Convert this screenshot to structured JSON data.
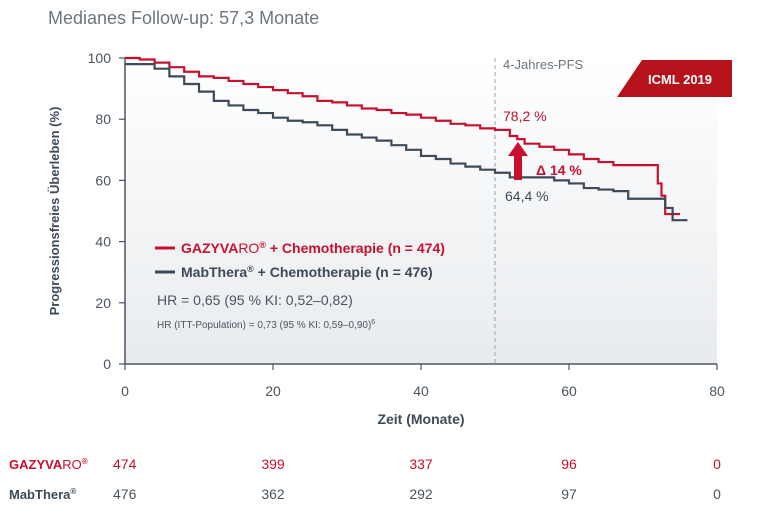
{
  "subtitle": "Medianes Follow-up: 57,3 Monate",
  "badge": "ICML 2019",
  "colors": {
    "gazyva": "#c8102e",
    "mabthera": "#3d4a57",
    "badge": "#b5121b",
    "axis": "#4a5560",
    "plot_bg_top": "#ffffff",
    "plot_bg_bottom": "#e8ebee"
  },
  "marker": {
    "label": "4-Jahres-PFS",
    "x": 50
  },
  "annotations": {
    "gazyva_value": "78,2 %",
    "mabthera_value": "64,4 %",
    "delta": "Δ 14 %"
  },
  "legend": {
    "gazyva_brand": "GAZYVA",
    "gazyva_brand_suffix": "RO",
    "gazyva_reg": "®",
    "gazyva_rest": " + Chemotherapie (n = 474)",
    "mabthera_brand": "MabThera",
    "mabthera_reg": "®",
    "mabthera_rest": " + Chemotherapie (n = 476)"
  },
  "hr_main": "HR = 0,65 (95 % KI: 0,52–0,82)",
  "hr_itt": "HR (ITT-Population) = 0,73 (95 % KI: 0,59–0,90)",
  "hr_itt_sup": "6",
  "risk_table": {
    "gazyva_label_brand": "GAZYVA",
    "gazyva_label_suffix": "RO",
    "gazyva_label_reg": "®",
    "mabthera_label": "MabThera",
    "mabthera_label_reg": "®",
    "timepoints": [
      0,
      20,
      40,
      60,
      80
    ],
    "gazyva": [
      "474",
      "399",
      "337",
      "96",
      "0"
    ],
    "mabthera": [
      "476",
      "362",
      "292",
      "97",
      "0"
    ]
  },
  "chart_data": {
    "type": "line",
    "xlabel": "Zeit (Monate)",
    "ylabel": "Progressionsfreies Überleben (%)",
    "xlim": [
      0,
      80
    ],
    "ylim": [
      0,
      100
    ],
    "xticks": [
      0,
      20,
      40,
      60,
      80
    ],
    "yticks": [
      0,
      20,
      40,
      60,
      80,
      100
    ],
    "series": [
      {
        "name": "GAZYVARO® + Chemotherapie (n = 474)",
        "x": [
          0,
          2,
          4,
          6,
          8,
          10,
          12,
          14,
          16,
          18,
          20,
          22,
          24,
          26,
          28,
          30,
          32,
          34,
          36,
          38,
          40,
          42,
          44,
          46,
          48,
          50,
          52,
          53,
          54,
          56,
          58,
          60,
          62,
          64,
          66,
          68,
          70,
          72,
          72.5,
          73,
          75
        ],
        "y": [
          100,
          99.5,
          98.5,
          97,
          95.5,
          94,
          93.5,
          92.5,
          91.5,
          90.5,
          89.5,
          88.5,
          87.5,
          86,
          85.5,
          84.5,
          83.5,
          83,
          82,
          81.5,
          80.5,
          79.5,
          78.5,
          78,
          77,
          76.5,
          74.5,
          73.5,
          72,
          71,
          70,
          68.5,
          67,
          66,
          65,
          65,
          65,
          59,
          55,
          49,
          49
        ]
      },
      {
        "name": "MabThera® + Chemotherapie (n = 476)",
        "x": [
          0,
          2,
          4,
          6,
          8,
          10,
          12,
          14,
          16,
          18,
          20,
          22,
          24,
          26,
          28,
          30,
          32,
          34,
          36,
          38,
          40,
          42,
          44,
          46,
          48,
          50,
          52,
          54,
          56,
          58,
          60,
          62,
          64,
          66,
          68,
          70,
          72,
          73,
          74,
          76
        ],
        "y": [
          98,
          98,
          96.5,
          94,
          91.5,
          89,
          86,
          84.5,
          83,
          82,
          80.5,
          79.5,
          79,
          78,
          76.5,
          75,
          74,
          73,
          71.5,
          70,
          68,
          67,
          65.5,
          64.5,
          63.5,
          62.5,
          61,
          61,
          61,
          60,
          59,
          57.5,
          57,
          56.5,
          54,
          54,
          54,
          51,
          47,
          47
        ]
      }
    ]
  }
}
